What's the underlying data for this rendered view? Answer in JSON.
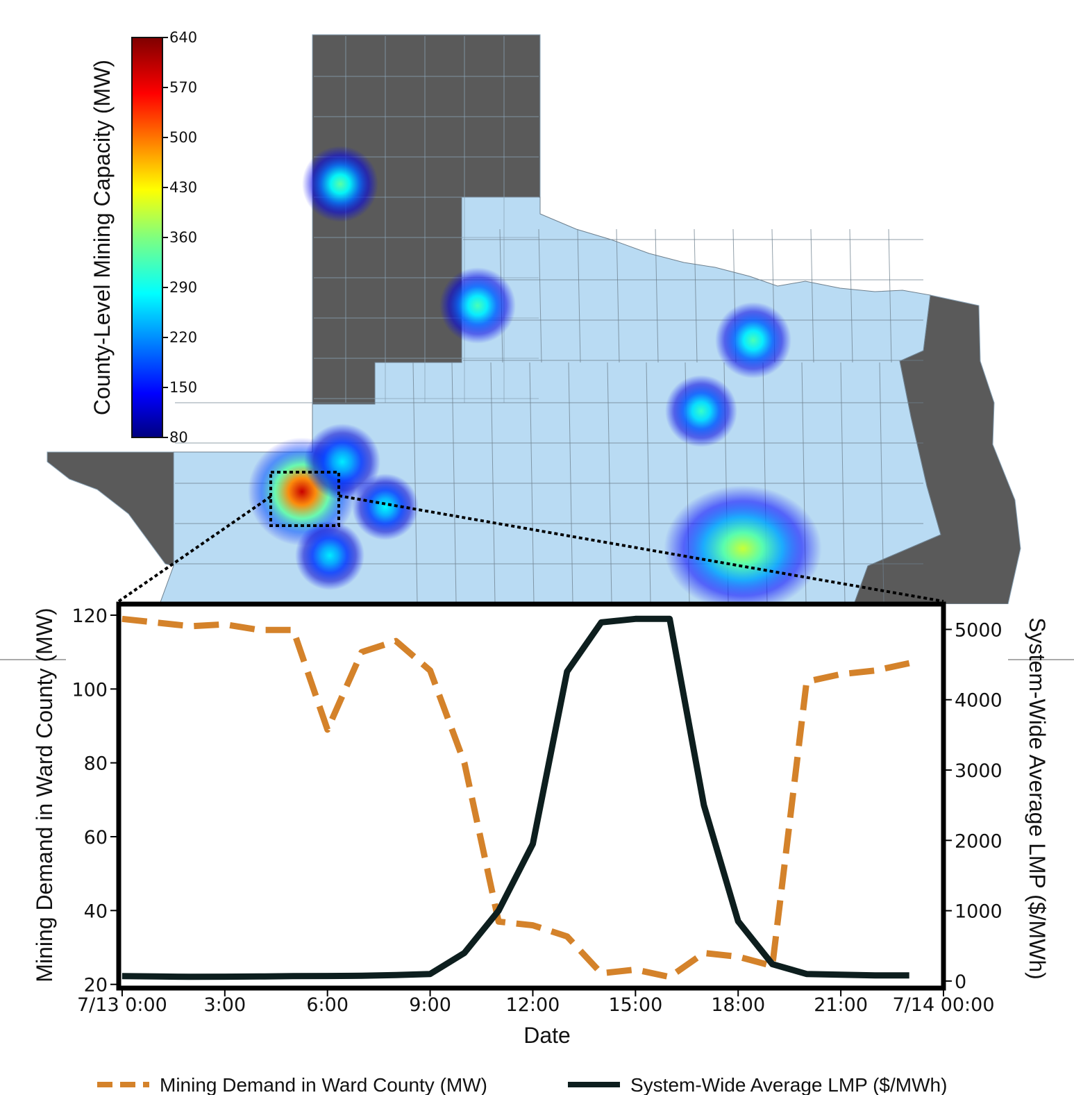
{
  "chart_data": [
    {
      "type": "heatmap",
      "subject": "map",
      "colorbar": {
        "label": "County-Level Mining Capacity (MW)",
        "ticks": [
          640,
          570,
          500,
          430,
          360,
          290,
          220,
          150,
          80
        ],
        "range": [
          80,
          640
        ],
        "colormap": "jet"
      },
      "colors": {
        "texas": "#b9dbf3",
        "outside": "#5a5a5a",
        "county_border": "#6d7f8d"
      },
      "hotspots": [
        {
          "value": 340,
          "spread": 1.0
        },
        {
          "value": 330,
          "spread": 1.0
        },
        {
          "value": 330,
          "spread": 1.0
        },
        {
          "value": 320,
          "spread": 1.0
        },
        {
          "value": 600,
          "spread": 1.3
        },
        {
          "value": 280,
          "spread": 1.1
        },
        {
          "value": 290,
          "spread": 1.0
        },
        {
          "value": 280,
          "spread": 1.0
        },
        {
          "value": 400,
          "spread": 1.3
        }
      ]
    },
    {
      "type": "line",
      "xlabel": "Date",
      "ylabel": "Mining Demand in Ward County (MW)",
      "y2label": "System-Wide Average LMP ($/MWh)",
      "xlim": [
        -0.1,
        24.0
      ],
      "ylim": [
        19,
        123
      ],
      "y2lim": [
        -100,
        5360
      ],
      "x_ticks": [
        {
          "value": 0,
          "label": "7/13 0:00"
        },
        {
          "value": 3,
          "label": "3:00"
        },
        {
          "value": 6,
          "label": "6:00"
        },
        {
          "value": 9,
          "label": "9:00"
        },
        {
          "value": 12,
          "label": "12:00"
        },
        {
          "value": 15,
          "label": "15:00"
        },
        {
          "value": 18,
          "label": "18:00"
        },
        {
          "value": 21,
          "label": "21:00"
        },
        {
          "value": 24,
          "label": "7/14 00:00"
        }
      ],
      "y_ticks": [
        20,
        40,
        60,
        80,
        100,
        120
      ],
      "y2_ticks": [
        0,
        1000,
        2000,
        3000,
        4000,
        5000
      ],
      "legend_position": "bottom-center",
      "series": [
        {
          "name": "Mining Demand in Ward County (MW)",
          "axis": "left",
          "color": "#d4822a",
          "style": "dashed",
          "x": [
            0,
            1,
            2,
            3,
            4,
            5,
            6,
            7,
            8,
            9,
            10,
            11,
            12,
            13,
            14,
            15,
            16,
            17,
            18,
            19,
            20,
            21,
            22,
            23
          ],
          "y": [
            119,
            118,
            117,
            117.5,
            116,
            116,
            89,
            110,
            113,
            105,
            80,
            37,
            36,
            33,
            23,
            24,
            22,
            28.5,
            27.5,
            25,
            102,
            104,
            105,
            107
          ]
        },
        {
          "name": "System-Wide Average LMP ($/MWh)",
          "axis": "right",
          "color": "#0d1e1e",
          "style": "solid",
          "x": [
            0,
            1,
            2,
            3,
            4,
            5,
            6,
            7,
            8,
            9,
            10,
            11,
            12,
            13,
            14,
            15,
            16,
            17,
            18,
            19,
            20,
            21,
            22,
            23
          ],
          "y": [
            70,
            65,
            60,
            62,
            65,
            70,
            72,
            75,
            85,
            100,
            400,
            1000,
            1950,
            4400,
            5100,
            5150,
            5150,
            2500,
            850,
            240,
            100,
            90,
            80,
            80
          ]
        }
      ]
    }
  ]
}
